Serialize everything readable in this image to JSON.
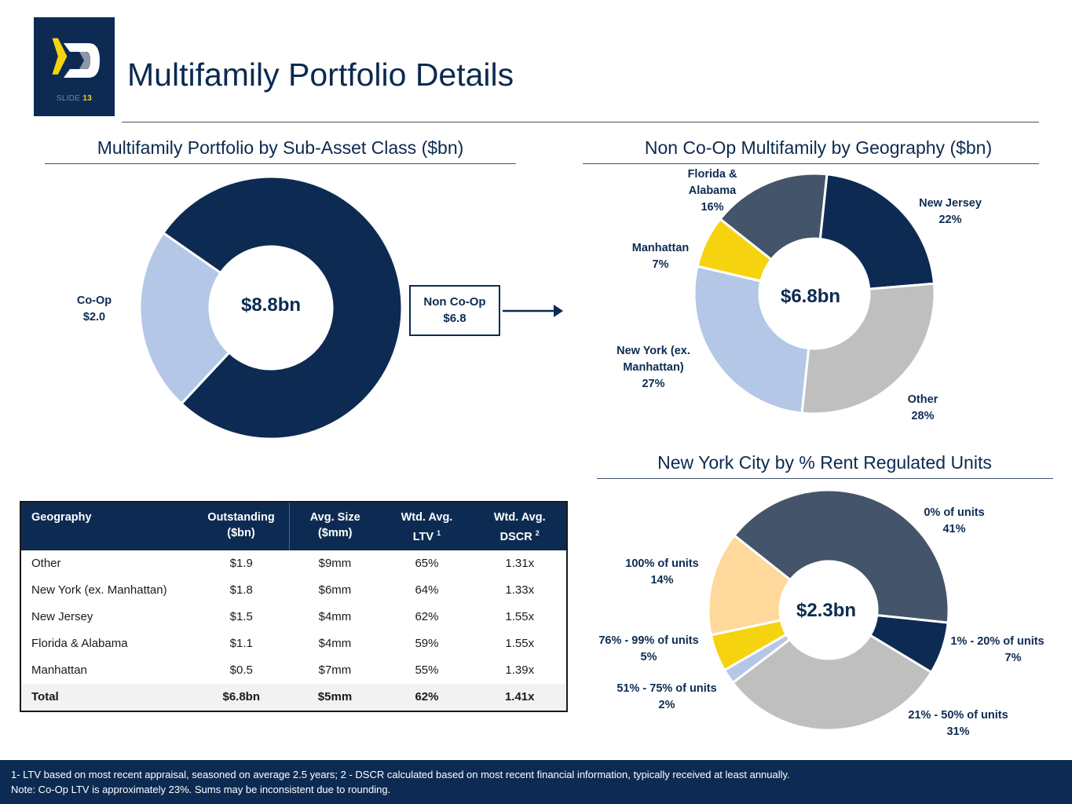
{
  "header": {
    "title": "Multifamily Portfolio Details",
    "slide_label": "SLIDE",
    "slide_number": "13"
  },
  "colors": {
    "navy": "#0d2b52",
    "slate": "#44546a",
    "light_blue": "#b4c7e7",
    "gray": "#bfbfbf",
    "yellow": "#f5d40f",
    "peach": "#ffd89b",
    "text": "#0b2a4f"
  },
  "chart_data": [
    {
      "type": "pie",
      "variant": "donut",
      "title": "Multifamily Portfolio by Sub-Asset Class ($bn)",
      "center_label": "$8.8bn",
      "categories": [
        "Co-Op",
        "Non Co-Op"
      ],
      "values": [
        2.0,
        6.8
      ],
      "labels": [
        {
          "name": "Co-Op",
          "value": "$2.0"
        },
        {
          "name": "Non Co-Op",
          "value": "$6.8"
        }
      ],
      "colors": [
        "#b4c7e7",
        "#0d2b52"
      ]
    },
    {
      "type": "pie",
      "variant": "donut",
      "title": "Non Co-Op Multifamily by Geography ($bn)",
      "center_label": "$6.8bn",
      "categories": [
        "New Jersey",
        "Other",
        "New York (ex. Manhattan)",
        "Manhattan",
        "Florida & Alabama"
      ],
      "values": [
        22,
        28,
        27,
        7,
        16
      ],
      "value_labels": [
        "22%",
        "28%",
        "27%",
        "7%",
        "16%"
      ],
      "label_lines": [
        [
          "New Jersey"
        ],
        [
          "Other"
        ],
        [
          "New York (ex.",
          "Manhattan)"
        ],
        [
          "Manhattan"
        ],
        [
          "Florida &",
          "Alabama"
        ]
      ],
      "colors": [
        "#0d2b52",
        "#bfbfbf",
        "#b4c7e7",
        "#f5d40f",
        "#44546a"
      ]
    },
    {
      "type": "pie",
      "variant": "donut",
      "title": "New York City by % Rent Regulated Units",
      "center_label": "$2.3bn",
      "categories": [
        "1% - 20% of units",
        "21% - 50% of units",
        "51% - 75% of units",
        "76% - 99% of units",
        "100% of units",
        "0% of units"
      ],
      "values": [
        7,
        31,
        2,
        5,
        14,
        41
      ],
      "value_labels": [
        "7%",
        "31%",
        "2%",
        "5%",
        "14%",
        "41%"
      ],
      "colors": [
        "#0d2b52",
        "#bfbfbf",
        "#b4c7e7",
        "#f5d40f",
        "#ffd89b",
        "#44546a"
      ]
    },
    {
      "type": "table",
      "columns": [
        "Geography",
        "Outstanding ($bn)",
        "Avg. Size ($mm)",
        "Wtd. Avg. LTV 1",
        "Wtd. Avg. DSCR 2"
      ],
      "rows": [
        [
          "Other",
          "$1.9",
          "$9mm",
          "65%",
          "1.31x"
        ],
        [
          "New York (ex. Manhattan)",
          "$1.8",
          "$6mm",
          "64%",
          "1.33x"
        ],
        [
          "New Jersey",
          "$1.5",
          "$4mm",
          "62%",
          "1.55x"
        ],
        [
          "Florida & Alabama",
          "$1.1",
          "$4mm",
          "59%",
          "1.55x"
        ],
        [
          "Manhattan",
          "$0.5",
          "$7mm",
          "55%",
          "1.39x"
        ],
        [
          "Total",
          "$6.8bn",
          "$5mm",
          "62%",
          "1.41x"
        ]
      ]
    }
  ],
  "table": {
    "headers": [
      {
        "line1": "Geography",
        "line2": "",
        "sup": ""
      },
      {
        "line1": "Outstanding",
        "line2": "($bn)",
        "sup": ""
      },
      {
        "line1": "Avg. Size",
        "line2": "($mm)",
        "sup": ""
      },
      {
        "line1": "Wtd. Avg.",
        "line2": "LTV",
        "sup": "1"
      },
      {
        "line1": "Wtd. Avg.",
        "line2": "DSCR",
        "sup": "2"
      }
    ],
    "rows": [
      [
        "Other",
        "$1.9",
        "$9mm",
        "65%",
        "1.31x"
      ],
      [
        "New York (ex. Manhattan)",
        "$1.8",
        "$6mm",
        "64%",
        "1.33x"
      ],
      [
        "New Jersey",
        "$1.5",
        "$4mm",
        "62%",
        "1.55x"
      ],
      [
        "Florida & Alabama",
        "$1.1",
        "$4mm",
        "59%",
        "1.55x"
      ],
      [
        "Manhattan",
        "$0.5",
        "$7mm",
        "55%",
        "1.39x"
      ]
    ],
    "total": [
      "Total",
      "$6.8bn",
      "$5mm",
      "62%",
      "1.41x"
    ]
  },
  "footer": {
    "line1": "1- LTV based on most recent appraisal, seasoned on average 2.5 years; 2 - DSCR calculated based on most recent financial information, typically received at least annually.",
    "line2": "Note: Co-Op LTV is approximately 23%.  Sums may be inconsistent due to rounding."
  }
}
